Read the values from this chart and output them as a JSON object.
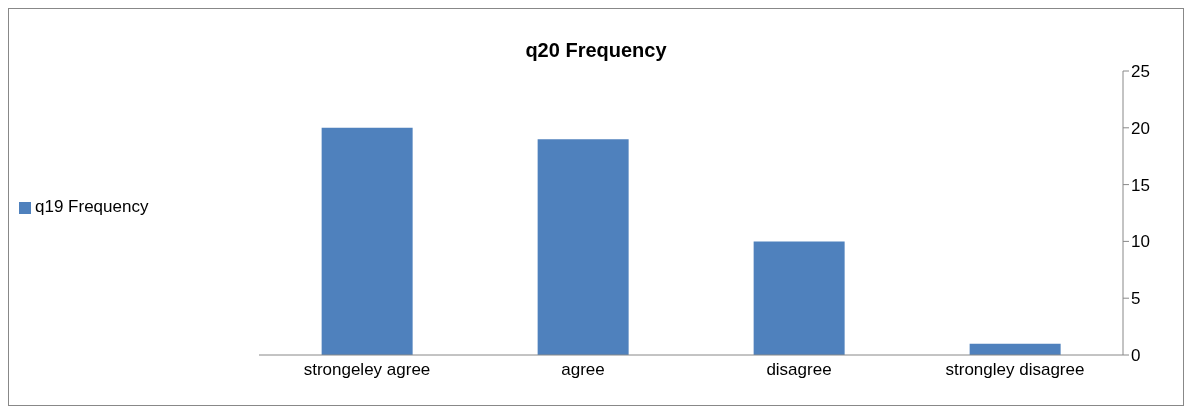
{
  "chart_data": {
    "type": "bar",
    "title": "q20 Frequency",
    "categories": [
      "strongeley agree",
      "agree",
      "disagree",
      "strongley disagree"
    ],
    "series": [
      {
        "name": "q19 Frequency",
        "color": "#4f81bd",
        "values": [
          20,
          19,
          10,
          1
        ]
      }
    ],
    "ylim": [
      0,
      25
    ],
    "yticks": [
      0,
      5,
      10,
      15,
      20,
      25
    ],
    "grid": false,
    "legend": "left"
  }
}
